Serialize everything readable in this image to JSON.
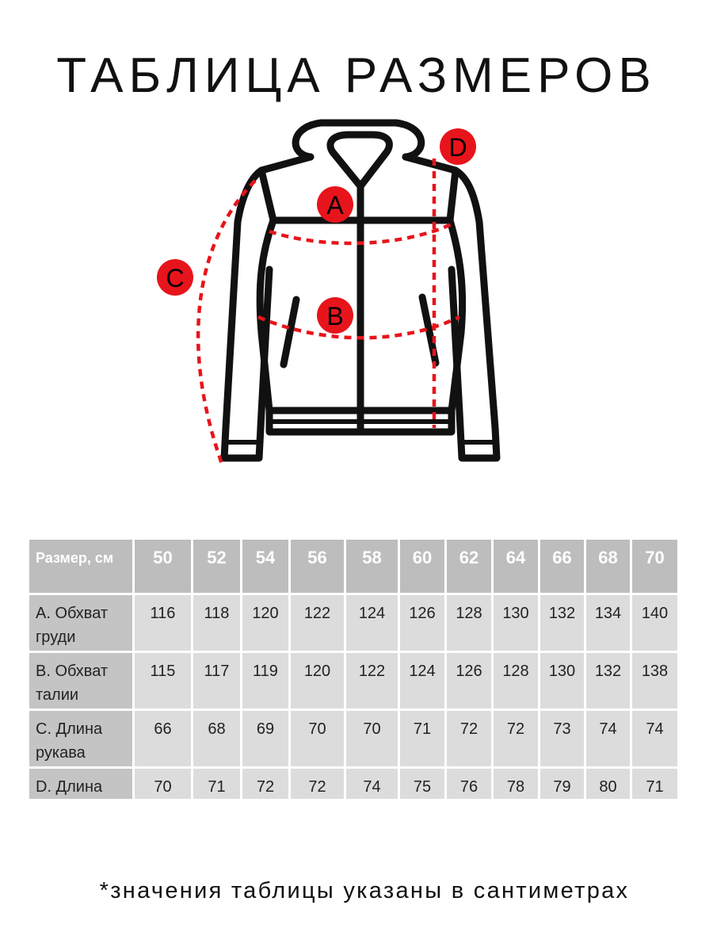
{
  "title": "ТАБЛИЦА РАЗМЕРОВ",
  "diagram": {
    "labels": [
      "A",
      "B",
      "C",
      "D"
    ],
    "marker_color": "#e8141b"
  },
  "table": {
    "header": {
      "label": "Размер, см",
      "sizes": [
        "50",
        "52",
        "54",
        "56",
        "58",
        "60",
        "62",
        "64",
        "66",
        "68",
        "70"
      ]
    },
    "rows": [
      {
        "label": "A. Обхват груди",
        "values": [
          "116",
          "118",
          "120",
          "122",
          "124",
          "126",
          "128",
          "130",
          "132",
          "134",
          "140"
        ]
      },
      {
        "label": "B. Обхват талии",
        "values": [
          "115",
          "117",
          "119",
          "120",
          "122",
          "124",
          "126",
          "128",
          "130",
          "132",
          "138"
        ]
      },
      {
        "label": "C. Длина рукава",
        "values": [
          "66",
          "68",
          "69",
          "70",
          "70",
          "71",
          "72",
          "72",
          "73",
          "74",
          "74"
        ]
      },
      {
        "label": "D. Длина",
        "values": [
          "70",
          "71",
          "72",
          "72",
          "74",
          "75",
          "76",
          "78",
          "79",
          "80",
          "71"
        ]
      }
    ]
  },
  "note": "*значения таблицы указаны в сантиметрах"
}
